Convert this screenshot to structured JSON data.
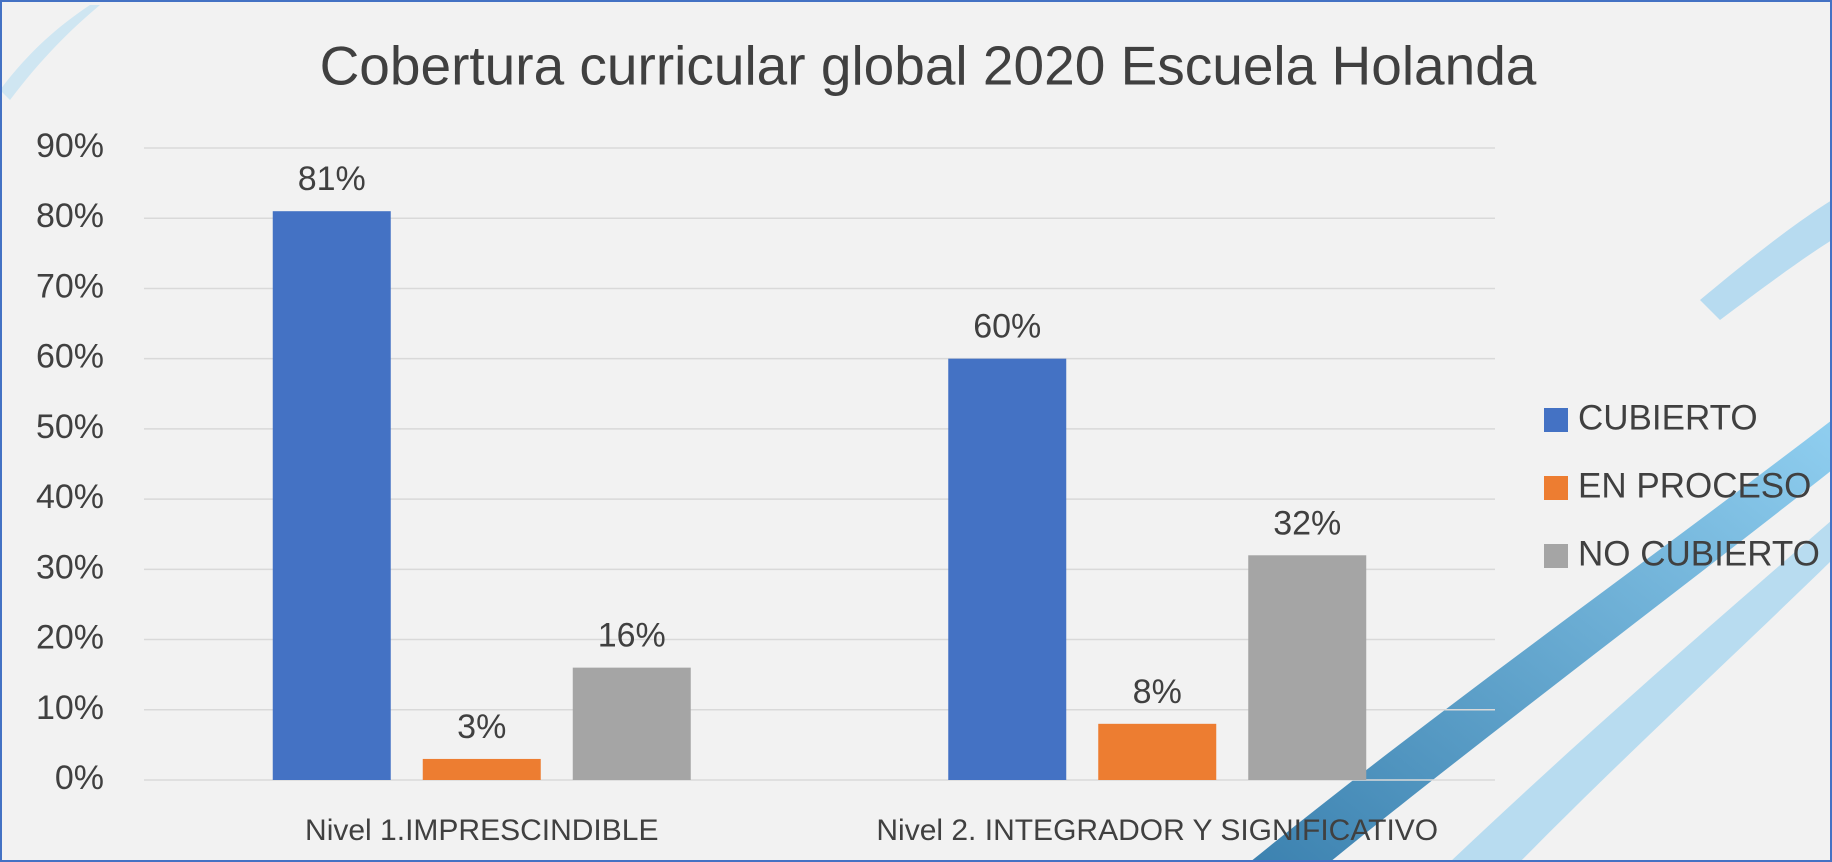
{
  "chart_data": {
    "type": "bar",
    "title": "Cobertura curricular global 2020 Escuela Holanda",
    "categories": [
      "Nivel 1.IMPRESCINDIBLE",
      "Nivel 2. INTEGRADOR Y SIGNIFICATIVO"
    ],
    "series": [
      {
        "name": "CUBIERTO",
        "color": "#4472c4",
        "values": [
          81,
          60
        ],
        "value_labels": [
          "81%",
          "60%"
        ]
      },
      {
        "name": "EN PROCESO",
        "color": "#ed7d31",
        "values": [
          3,
          8
        ],
        "value_labels": [
          "3%",
          "8%"
        ]
      },
      {
        "name": "NO CUBIERTO",
        "color": "#a5a5a5",
        "values": [
          16,
          32
        ],
        "value_labels": [
          "16%",
          "32%"
        ]
      }
    ],
    "ylim": [
      0,
      90
    ],
    "yticks": [
      {
        "value": 0,
        "label": "0%"
      },
      {
        "value": 10,
        "label": "10%"
      },
      {
        "value": 20,
        "label": "20%"
      },
      {
        "value": 30,
        "label": "30%"
      },
      {
        "value": 40,
        "label": "40%"
      },
      {
        "value": 50,
        "label": "50%"
      },
      {
        "value": 60,
        "label": "60%"
      },
      {
        "value": 70,
        "label": "70%"
      },
      {
        "value": 80,
        "label": "80%"
      },
      {
        "value": 90,
        "label": "90%"
      }
    ],
    "grid": true,
    "legend": "right"
  }
}
